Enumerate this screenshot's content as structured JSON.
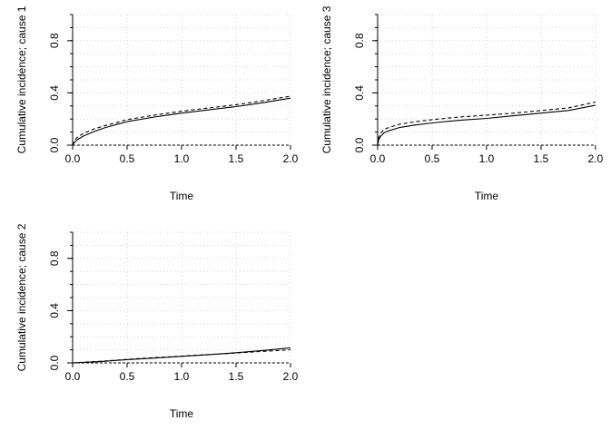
{
  "chart_data": [
    {
      "type": "line",
      "title": "",
      "xlabel": "Time",
      "ylabel": "Cumulative incidence; cause 1",
      "xlim": [
        0,
        2
      ],
      "ylim": [
        0,
        1
      ],
      "xticks": [
        "0.0",
        "0.5",
        "1.0",
        "1.5",
        "2.0"
      ],
      "yticks": [
        "0.0",
        "0.4",
        "0.8"
      ],
      "grid": true,
      "series": [
        {
          "name": "solid",
          "style": "solid",
          "x": [
            0,
            0.02,
            0.05,
            0.1,
            0.2,
            0.3,
            0.5,
            0.75,
            1.0,
            1.25,
            1.5,
            1.75,
            2.0
          ],
          "y": [
            0,
            0.025,
            0.045,
            0.07,
            0.105,
            0.135,
            0.18,
            0.215,
            0.245,
            0.27,
            0.295,
            0.325,
            0.36
          ]
        },
        {
          "name": "dashed",
          "style": "dashed",
          "x": [
            0,
            0.02,
            0.05,
            0.1,
            0.2,
            0.3,
            0.5,
            0.75,
            1.0,
            1.25,
            1.5,
            1.75,
            2.0
          ],
          "y": [
            0,
            0.04,
            0.065,
            0.09,
            0.125,
            0.15,
            0.195,
            0.23,
            0.26,
            0.285,
            0.31,
            0.34,
            0.375
          ]
        }
      ]
    },
    {
      "type": "line",
      "title": "",
      "xlabel": "Time",
      "ylabel": "Cumulative incidence; cause 3",
      "xlim": [
        0,
        2
      ],
      "ylim": [
        0,
        1
      ],
      "xticks": [
        "0.0",
        "0.5",
        "1.0",
        "1.5",
        "2.0"
      ],
      "yticks": [
        "0.0",
        "0.4",
        "0.8"
      ],
      "grid": true,
      "series": [
        {
          "name": "solid",
          "style": "solid",
          "x": [
            0,
            0.01,
            0.03,
            0.06,
            0.1,
            0.2,
            0.35,
            0.5,
            0.75,
            1.0,
            1.25,
            1.5,
            1.75,
            2.0
          ],
          "y": [
            0,
            0.04,
            0.07,
            0.095,
            0.11,
            0.135,
            0.155,
            0.17,
            0.19,
            0.205,
            0.225,
            0.245,
            0.265,
            0.305
          ]
        },
        {
          "name": "dashed",
          "style": "dashed",
          "x": [
            0,
            0.01,
            0.03,
            0.06,
            0.1,
            0.2,
            0.35,
            0.5,
            0.75,
            1.0,
            1.25,
            1.5,
            1.75,
            2.0
          ],
          "y": [
            0,
            0.06,
            0.095,
            0.12,
            0.135,
            0.16,
            0.18,
            0.195,
            0.215,
            0.23,
            0.245,
            0.265,
            0.285,
            0.33
          ]
        }
      ]
    },
    {
      "type": "line",
      "title": "",
      "xlabel": "Time",
      "ylabel": "Cumulative incidence; cause 2",
      "xlim": [
        0,
        2
      ],
      "ylim": [
        0,
        1
      ],
      "xticks": [
        "0.0",
        "0.5",
        "1.0",
        "1.5",
        "2.0"
      ],
      "yticks": [
        "0.0",
        "0.4",
        "0.8"
      ],
      "grid": true,
      "series": [
        {
          "name": "solid",
          "style": "solid",
          "x": [
            0,
            0.25,
            0.5,
            0.75,
            1.0,
            1.25,
            1.5,
            1.75,
            2.0
          ],
          "y": [
            0,
            0.01,
            0.025,
            0.037,
            0.05,
            0.063,
            0.078,
            0.095,
            0.115
          ]
        },
        {
          "name": "dashed",
          "style": "dashed",
          "x": [
            0,
            0.25,
            0.5,
            0.75,
            1.0,
            1.25,
            1.5,
            1.75,
            2.0
          ],
          "y": [
            0,
            0.012,
            0.027,
            0.04,
            0.052,
            0.064,
            0.076,
            0.088,
            0.1
          ]
        }
      ]
    }
  ]
}
